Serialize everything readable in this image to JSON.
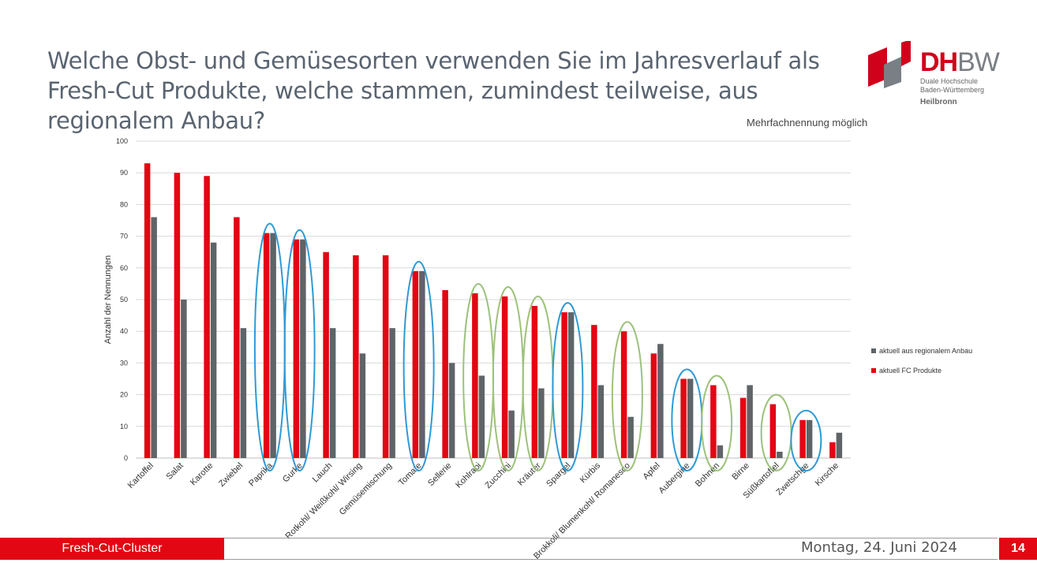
{
  "slide": {
    "title": "Welche Obst- und Gemüsesorten verwenden Sie im Jahresverlauf als Fresh-Cut Produkte, welche stammen, zumindest teilweise, aus regionalem Anbau?",
    "note": "Mehrfachnennung möglich",
    "footer_left": "Fresh-Cut-Cluster",
    "footer_date": "Montag, 24. Juni 2024",
    "page_number": "14"
  },
  "logo": {
    "word_dh": "DH",
    "word_bw": "BW",
    "line1": "Duale Hochschule",
    "line2": "Baden-Württemberg",
    "line3": "Heilbronn"
  },
  "colors": {
    "red": "#e30613",
    "gray": "#5f6468",
    "blue_ring": "#2f9ad6",
    "green_ring": "#9cc27a",
    "accent": "#e30613"
  },
  "chart_data": {
    "type": "bar",
    "ylabel": "Anzahl der Nennungen",
    "ylim": [
      0,
      100
    ],
    "yticks": [
      0,
      10,
      20,
      30,
      40,
      50,
      60,
      70,
      80,
      90,
      100
    ],
    "grid": true,
    "legend_position": "right",
    "categories": [
      "Kartoffel",
      "Salat",
      "Karotte",
      "Zwiebel",
      "Paprika",
      "Gurke",
      "Lauch",
      "Rotkohl/ Weißkohl/ Wirsing",
      "Gemüsemischung",
      "Tomate",
      "Sellerie",
      "Kohlrabi",
      "Zucchini",
      "Kräuter",
      "Spargel",
      "Kürbis",
      "Brokkoli/ Blumenkohl/ Romanesco",
      "Apfel",
      "Aubergine",
      "Bohnen",
      "Birne",
      "Süßkartoffel",
      "Zwetschge",
      "Kirsche"
    ],
    "series": [
      {
        "name": "aktuell FC Produkte",
        "color": "#e30613",
        "values": [
          93,
          90,
          89,
          76,
          71,
          69,
          65,
          64,
          64,
          59,
          53,
          52,
          51,
          48,
          46,
          42,
          40,
          33,
          25,
          23,
          19,
          17,
          12,
          5
        ]
      },
      {
        "name": "aktuell aus regionalem Anbau",
        "color": "#5f6468",
        "values": [
          76,
          50,
          68,
          41,
          71,
          69,
          41,
          33,
          41,
          59,
          30,
          26,
          15,
          22,
          46,
          23,
          13,
          36,
          25,
          4,
          23,
          2,
          12,
          8
        ]
      }
    ],
    "highlight_rings": {
      "blue": [
        "Paprika",
        "Gurke",
        "Tomate",
        "Spargel",
        "Aubergine",
        "Zwetschge"
      ],
      "green": [
        "Kohlrabi",
        "Zucchini",
        "Kräuter",
        "Brokkoli/ Blumenkohl/ Romanesco",
        "Bohnen",
        "Süßkartoffel"
      ]
    }
  }
}
